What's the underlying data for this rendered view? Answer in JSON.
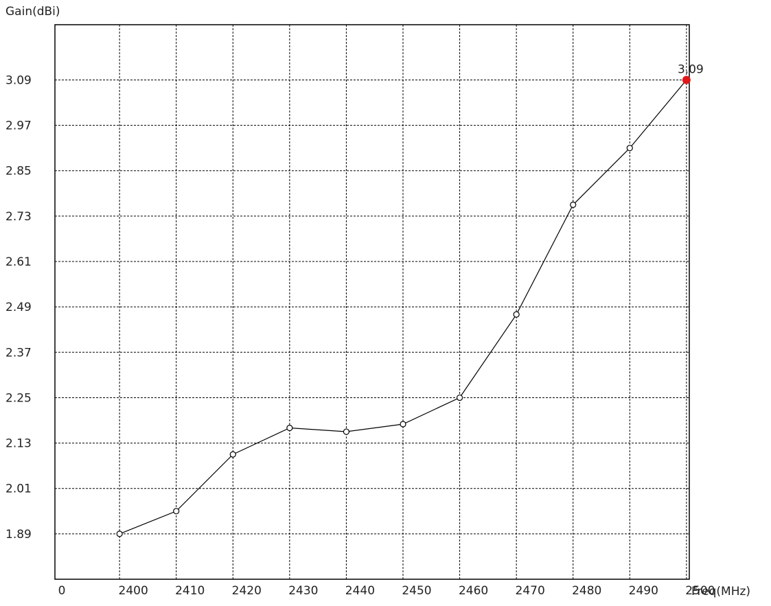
{
  "chart_data": {
    "type": "line",
    "xlabel": "Freq(MHz)",
    "ylabel": "Gain(dBi)",
    "x_origin_label": "0",
    "x_ticks": [
      2400,
      2410,
      2420,
      2430,
      2440,
      2450,
      2460,
      2470,
      2480,
      2490,
      2500
    ],
    "y_ticks": [
      1.89,
      2.01,
      2.13,
      2.25,
      2.37,
      2.49,
      2.61,
      2.73,
      2.85,
      2.97,
      3.09
    ],
    "xlim": [
      2388.6,
      2500.5
    ],
    "ylim": [
      1.77,
      3.236
    ],
    "grid": true,
    "series": [
      {
        "x": [
          2400,
          2410,
          2420,
          2430,
          2440,
          2450,
          2460,
          2470,
          2480,
          2490,
          2500
        ],
        "y": [
          1.89,
          1.95,
          2.1,
          2.17,
          2.16,
          2.18,
          2.25,
          2.47,
          2.76,
          2.91,
          3.09
        ]
      }
    ],
    "highlight": {
      "x": 2500,
      "y": 3.09,
      "label": "3.09",
      "color": "#e01818"
    }
  }
}
